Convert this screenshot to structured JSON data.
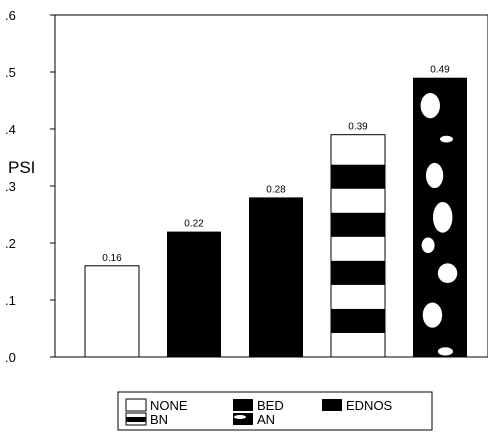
{
  "chart_data": {
    "type": "bar",
    "ylabel": "PSI",
    "xlabel": "",
    "ylim": [
      0,
      0.6
    ],
    "yticks": [
      ".0",
      ".1",
      ".2",
      ".3",
      ".4",
      ".5",
      ".6"
    ],
    "grid": false,
    "legend_position": "bottom",
    "categories": [
      "NONE",
      "BED",
      "EDNOS",
      "BN",
      "AN"
    ],
    "values": [
      0.16,
      0.22,
      0.28,
      0.39,
      0.49
    ],
    "data_labels": [
      "0.16",
      "0.22",
      "0.28",
      "0.39",
      "0.49"
    ],
    "fills": [
      "white",
      "black",
      "black",
      "horizontal-stripes",
      "black-with-white-ovals"
    ],
    "legend": [
      {
        "label": "NONE",
        "fill": "white"
      },
      {
        "label": "BED",
        "fill": "black"
      },
      {
        "label": "EDNOS",
        "fill": "black"
      },
      {
        "label": "BN",
        "fill": "horizontal-stripes"
      },
      {
        "label": "AN",
        "fill": "black-with-white-ovals"
      }
    ],
    "colors": {
      "bar_dark": "#000000",
      "bar_light": "#ffffff",
      "axis": "#000000"
    }
  }
}
